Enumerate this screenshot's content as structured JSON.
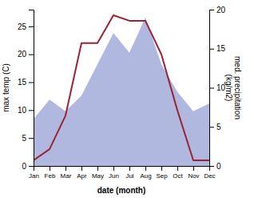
{
  "chart_data": {
    "type": "line",
    "categories": [
      "Jan",
      "Feb",
      "Mar",
      "Apr",
      "May",
      "Jun",
      "Jul",
      "Aug",
      "Sep",
      "Oct",
      "Nov",
      "Dec"
    ],
    "xlabel": "date (month)",
    "ylabel": "max temp (C)",
    "y2label": "med. precipitation\n(kg/m2)",
    "series": [
      {
        "type": "area",
        "axis": "y2",
        "color": "#b0b8e0",
        "values": [
          6,
          8.5,
          7,
          9,
          13,
          17,
          14.5,
          19,
          13,
          9.5,
          7,
          8
        ]
      },
      {
        "type": "line",
        "color": "#9b2335",
        "values": [
          1,
          3,
          9,
          22,
          22,
          27,
          26,
          26,
          20,
          10,
          1,
          1
        ]
      }
    ],
    "ylim": [
      0,
      28
    ],
    "yticks": [
      0,
      5,
      10,
      15,
      20,
      25
    ],
    "y2lim": [
      0,
      20
    ],
    "y2ticks": [
      0,
      5,
      10,
      15,
      20
    ]
  }
}
